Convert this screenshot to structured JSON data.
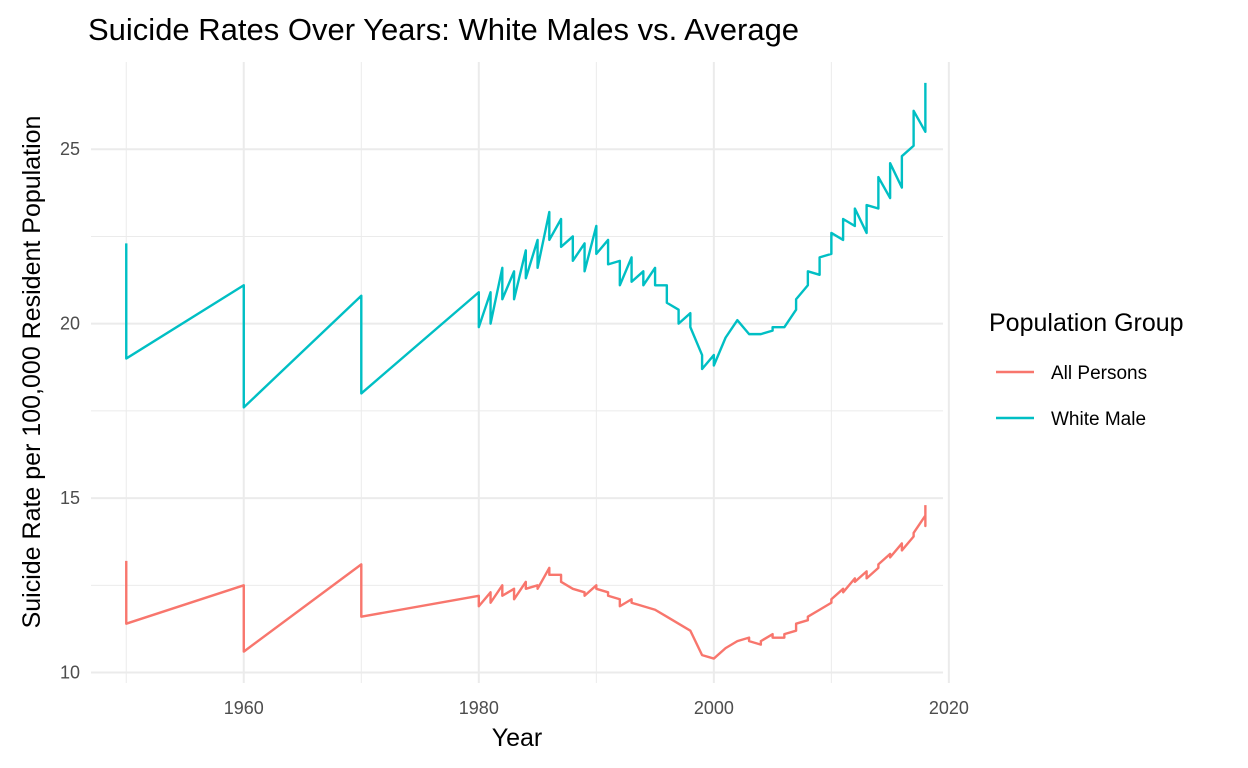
{
  "chart_data": {
    "type": "line",
    "title": "Suicide Rates Over Years: White Males vs. Average",
    "xlabel": "Year",
    "ylabel": "Suicide Rate per 100,000 Resident Population",
    "xlim": [
      1947,
      2019.5
    ],
    "ylim": [
      9.7,
      27.5
    ],
    "x_ticks": [
      1960,
      1980,
      2000,
      2020
    ],
    "x_minor_ticks": [
      1950,
      1970,
      1990,
      2010
    ],
    "y_ticks": [
      10,
      15,
      20,
      25
    ],
    "y_minor_ticks": [
      12.5,
      17.5,
      22.5
    ],
    "grid": true,
    "legend": {
      "title": "Population Group",
      "placement": "right"
    },
    "series": [
      {
        "name": "All Persons",
        "color": "#F8766D",
        "points": [
          [
            1950,
            13.2
          ],
          [
            1950,
            11.4
          ],
          [
            1960,
            12.5
          ],
          [
            1960,
            10.6
          ],
          [
            1970,
            13.1
          ],
          [
            1970,
            11.6
          ],
          [
            1980,
            12.2
          ],
          [
            1980,
            11.9
          ],
          [
            1981,
            12.3
          ],
          [
            1981,
            12.0
          ],
          [
            1982,
            12.5
          ],
          [
            1982,
            12.2
          ],
          [
            1983,
            12.4
          ],
          [
            1983,
            12.1
          ],
          [
            1984,
            12.6
          ],
          [
            1984,
            12.4
          ],
          [
            1985,
            12.5
          ],
          [
            1985,
            12.4
          ],
          [
            1986,
            13.0
          ],
          [
            1986,
            12.8
          ],
          [
            1987,
            12.8
          ],
          [
            1987,
            12.6
          ],
          [
            1988,
            12.4
          ],
          [
            1989,
            12.3
          ],
          [
            1989,
            12.2
          ],
          [
            1990,
            12.5
          ],
          [
            1990,
            12.4
          ],
          [
            1991,
            12.3
          ],
          [
            1991,
            12.2
          ],
          [
            1992,
            12.1
          ],
          [
            1992,
            11.9
          ],
          [
            1993,
            12.1
          ],
          [
            1993,
            12.0
          ],
          [
            1994,
            11.9
          ],
          [
            1995,
            11.8
          ],
          [
            1996,
            11.6
          ],
          [
            1997,
            11.4
          ],
          [
            1998,
            11.2
          ],
          [
            1999,
            10.5
          ],
          [
            2000,
            10.4
          ],
          [
            2001,
            10.7
          ],
          [
            2002,
            10.9
          ],
          [
            2003,
            11.0
          ],
          [
            2003,
            10.9
          ],
          [
            2004,
            10.8
          ],
          [
            2004,
            10.9
          ],
          [
            2005,
            11.1
          ],
          [
            2005,
            11.0
          ],
          [
            2006,
            11.0
          ],
          [
            2006,
            11.1
          ],
          [
            2007,
            11.2
          ],
          [
            2007,
            11.4
          ],
          [
            2008,
            11.5
          ],
          [
            2008,
            11.6
          ],
          [
            2009,
            11.8
          ],
          [
            2010,
            12.0
          ],
          [
            2010,
            12.1
          ],
          [
            2011,
            12.4
          ],
          [
            2011,
            12.3
          ],
          [
            2012,
            12.7
          ],
          [
            2012,
            12.6
          ],
          [
            2013,
            12.9
          ],
          [
            2013,
            12.7
          ],
          [
            2014,
            13.0
          ],
          [
            2014,
            13.1
          ],
          [
            2015,
            13.4
          ],
          [
            2015,
            13.3
          ],
          [
            2016,
            13.7
          ],
          [
            2016,
            13.5
          ],
          [
            2017,
            13.9
          ],
          [
            2017,
            14.0
          ],
          [
            2018,
            14.5
          ],
          [
            2018,
            14.2
          ],
          [
            2018,
            14.8
          ]
        ]
      },
      {
        "name": "White Male",
        "color": "#00BFC4",
        "points": [
          [
            1950,
            22.3
          ],
          [
            1950,
            19.0
          ],
          [
            1960,
            21.1
          ],
          [
            1960,
            17.6
          ],
          [
            1970,
            20.8
          ],
          [
            1970,
            18.0
          ],
          [
            1980,
            20.9
          ],
          [
            1980,
            19.9
          ],
          [
            1981,
            20.9
          ],
          [
            1981,
            20.0
          ],
          [
            1982,
            21.6
          ],
          [
            1982,
            20.7
          ],
          [
            1983,
            21.5
          ],
          [
            1983,
            20.7
          ],
          [
            1984,
            22.1
          ],
          [
            1984,
            21.3
          ],
          [
            1985,
            22.4
          ],
          [
            1985,
            21.6
          ],
          [
            1986,
            23.2
          ],
          [
            1986,
            22.4
          ],
          [
            1987,
            23.0
          ],
          [
            1987,
            22.2
          ],
          [
            1988,
            22.5
          ],
          [
            1988,
            21.8
          ],
          [
            1989,
            22.3
          ],
          [
            1989,
            21.5
          ],
          [
            1990,
            22.8
          ],
          [
            1990,
            22.0
          ],
          [
            1991,
            22.4
          ],
          [
            1991,
            21.7
          ],
          [
            1992,
            21.8
          ],
          [
            1992,
            21.1
          ],
          [
            1993,
            21.9
          ],
          [
            1993,
            21.2
          ],
          [
            1994,
            21.5
          ],
          [
            1994,
            21.1
          ],
          [
            1995,
            21.6
          ],
          [
            1995,
            21.1
          ],
          [
            1996,
            21.1
          ],
          [
            1996,
            20.6
          ],
          [
            1997,
            20.4
          ],
          [
            1997,
            20.0
          ],
          [
            1998,
            20.3
          ],
          [
            1998,
            19.9
          ],
          [
            1999,
            19.1
          ],
          [
            1999,
            18.7
          ],
          [
            2000,
            19.1
          ],
          [
            2000,
            18.8
          ],
          [
            2001,
            19.6
          ],
          [
            2002,
            20.1
          ],
          [
            2003,
            19.7
          ],
          [
            2004,
            19.7
          ],
          [
            2005,
            19.8
          ],
          [
            2005,
            19.9
          ],
          [
            2006,
            19.9
          ],
          [
            2007,
            20.4
          ],
          [
            2007,
            20.7
          ],
          [
            2008,
            21.1
          ],
          [
            2008,
            21.5
          ],
          [
            2009,
            21.4
          ],
          [
            2009,
            21.9
          ],
          [
            2010,
            22.0
          ],
          [
            2010,
            22.6
          ],
          [
            2011,
            22.4
          ],
          [
            2011,
            23.0
          ],
          [
            2012,
            22.8
          ],
          [
            2012,
            23.3
          ],
          [
            2013,
            22.6
          ],
          [
            2013,
            23.4
          ],
          [
            2014,
            23.3
          ],
          [
            2014,
            24.2
          ],
          [
            2015,
            23.6
          ],
          [
            2015,
            24.6
          ],
          [
            2016,
            23.9
          ],
          [
            2016,
            24.8
          ],
          [
            2017,
            25.1
          ],
          [
            2017,
            26.1
          ],
          [
            2018,
            25.5
          ],
          [
            2018,
            26.9
          ]
        ]
      }
    ]
  }
}
